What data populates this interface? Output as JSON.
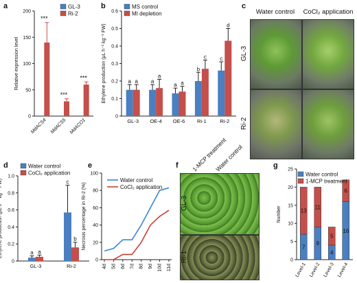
{
  "panels": {
    "a": "a",
    "b": "b",
    "c": "c",
    "d": "d",
    "e": "e",
    "f": "f",
    "g": "g"
  },
  "colors": {
    "blue": "#4a7fc1",
    "red": "#c44f4b",
    "blue_line": "#3a86d4",
    "red_line": "#d03a32"
  },
  "chart_data": [
    {
      "id": "a",
      "type": "bar",
      "ylabel": "Relative expression level",
      "ylim": [
        0,
        200
      ],
      "yticks": [
        0,
        50,
        100,
        150,
        200
      ],
      "categories": [
        "MdACS4",
        "MdACS5",
        "MdACO1"
      ],
      "series": [
        {
          "name": "GL-3",
          "values": [
            1,
            1,
            1
          ],
          "errors": [
            0,
            0,
            0
          ],
          "color": "#4a7fc1"
        },
        {
          "name": "Ri-2",
          "values": [
            140,
            28,
            60
          ],
          "errors": [
            38,
            5,
            5
          ],
          "color": "#c44f4b"
        }
      ],
      "annotations": [
        "***",
        "***",
        "***"
      ]
    },
    {
      "id": "b",
      "type": "bar",
      "ylabel": "Ethylene production (μL h⁻¹ kg⁻¹ FW)",
      "ylim": [
        0,
        0.6
      ],
      "yticks": [
        "0",
        "0.1",
        "0.2",
        "0.3",
        "0.4",
        "0.5",
        "0.6"
      ],
      "categories": [
        "GL-3",
        "OE-4",
        "OE-6",
        "Ri-1",
        "Ri-2"
      ],
      "series": [
        {
          "name": "MS control",
          "values": [
            0.15,
            0.15,
            0.13,
            0.2,
            0.26
          ],
          "errors": [
            0.03,
            0.03,
            0.03,
            0.05,
            0.05
          ],
          "color": "#4a7fc1"
        },
        {
          "name": "MI depletion",
          "values": [
            0.15,
            0.16,
            0.14,
            0.27,
            0.43
          ],
          "errors": [
            0.03,
            0.05,
            0.03,
            0.05,
            0.07
          ],
          "color": "#c44f4b"
        }
      ],
      "annotations": [
        [
          "a",
          "a"
        ],
        [
          "a",
          "a"
        ],
        [
          "a",
          "a"
        ],
        [
          "b",
          "c"
        ],
        [
          "c",
          "d"
        ]
      ]
    },
    {
      "id": "d",
      "type": "bar",
      "ylabel": "Ethylene production (μL h⁻¹ kg⁻¹ FW)",
      "ylim": [
        0,
        1.0
      ],
      "yticks": [
        "0",
        "0.2",
        "0.4",
        "0.6",
        "0.8",
        "1.0"
      ],
      "categories": [
        "GL-3",
        "Ri-2"
      ],
      "series": [
        {
          "name": "Water control",
          "values": [
            0.04,
            0.57
          ],
          "errors": [
            0.02,
            0.32
          ],
          "color": "#4a7fc1"
        },
        {
          "name": "CoCl₂ application",
          "values": [
            0.05,
            0.16
          ],
          "errors": [
            0.02,
            0.06
          ],
          "color": "#c44f4b"
        }
      ],
      "annotations": [
        [
          "a",
          "a"
        ],
        [
          "c",
          "b"
        ]
      ]
    },
    {
      "id": "e",
      "type": "line",
      "ylabel": "Necrosis percentage in Ri-2 (%)",
      "ylim": [
        0,
        100
      ],
      "yticks": [
        0,
        20,
        40,
        60,
        80,
        100
      ],
      "x": [
        "4d",
        "5d",
        "6d",
        "7d",
        "8d",
        "9d",
        "10d",
        "11d"
      ],
      "series": [
        {
          "name": "Water control",
          "values": [
            10,
            13,
            23,
            23,
            40,
            60,
            80,
            83
          ],
          "color": "#3a86d4"
        },
        {
          "name": "CoCl₂ application",
          "values": [
            0,
            0,
            6,
            6,
            20,
            40,
            50,
            57
          ],
          "color": "#d03a32"
        }
      ]
    },
    {
      "id": "g",
      "type": "bar",
      "stacked": true,
      "ylabel": "Number",
      "ylim": [
        0,
        25
      ],
      "yticks": [
        0,
        5,
        10,
        15,
        20,
        25
      ],
      "categories": [
        "Level-1",
        "Level-2",
        "Level-3",
        "Level-4"
      ],
      "series": [
        {
          "name": "Water control",
          "values": [
            7,
            9,
            4,
            16
          ],
          "labels": [
            "7",
            "9",
            "4",
            "16"
          ],
          "color": "#4a7fc1"
        },
        {
          "name": "1-MCP treatment",
          "values": [
            13,
            11,
            5,
            6
          ],
          "labels": [
            "13",
            "11",
            "5",
            "6"
          ],
          "color": "#c44f4b"
        }
      ]
    }
  ],
  "photo_c": {
    "col_labels": [
      "Water control",
      "CoCl₂ application"
    ],
    "row_labels": [
      "GL-3",
      "Ri-2"
    ]
  },
  "photo_f": {
    "col_labels": [
      "1-MCP treatment",
      "Water control"
    ],
    "row_labels": [
      "GL-3",
      "Ri-1"
    ]
  }
}
